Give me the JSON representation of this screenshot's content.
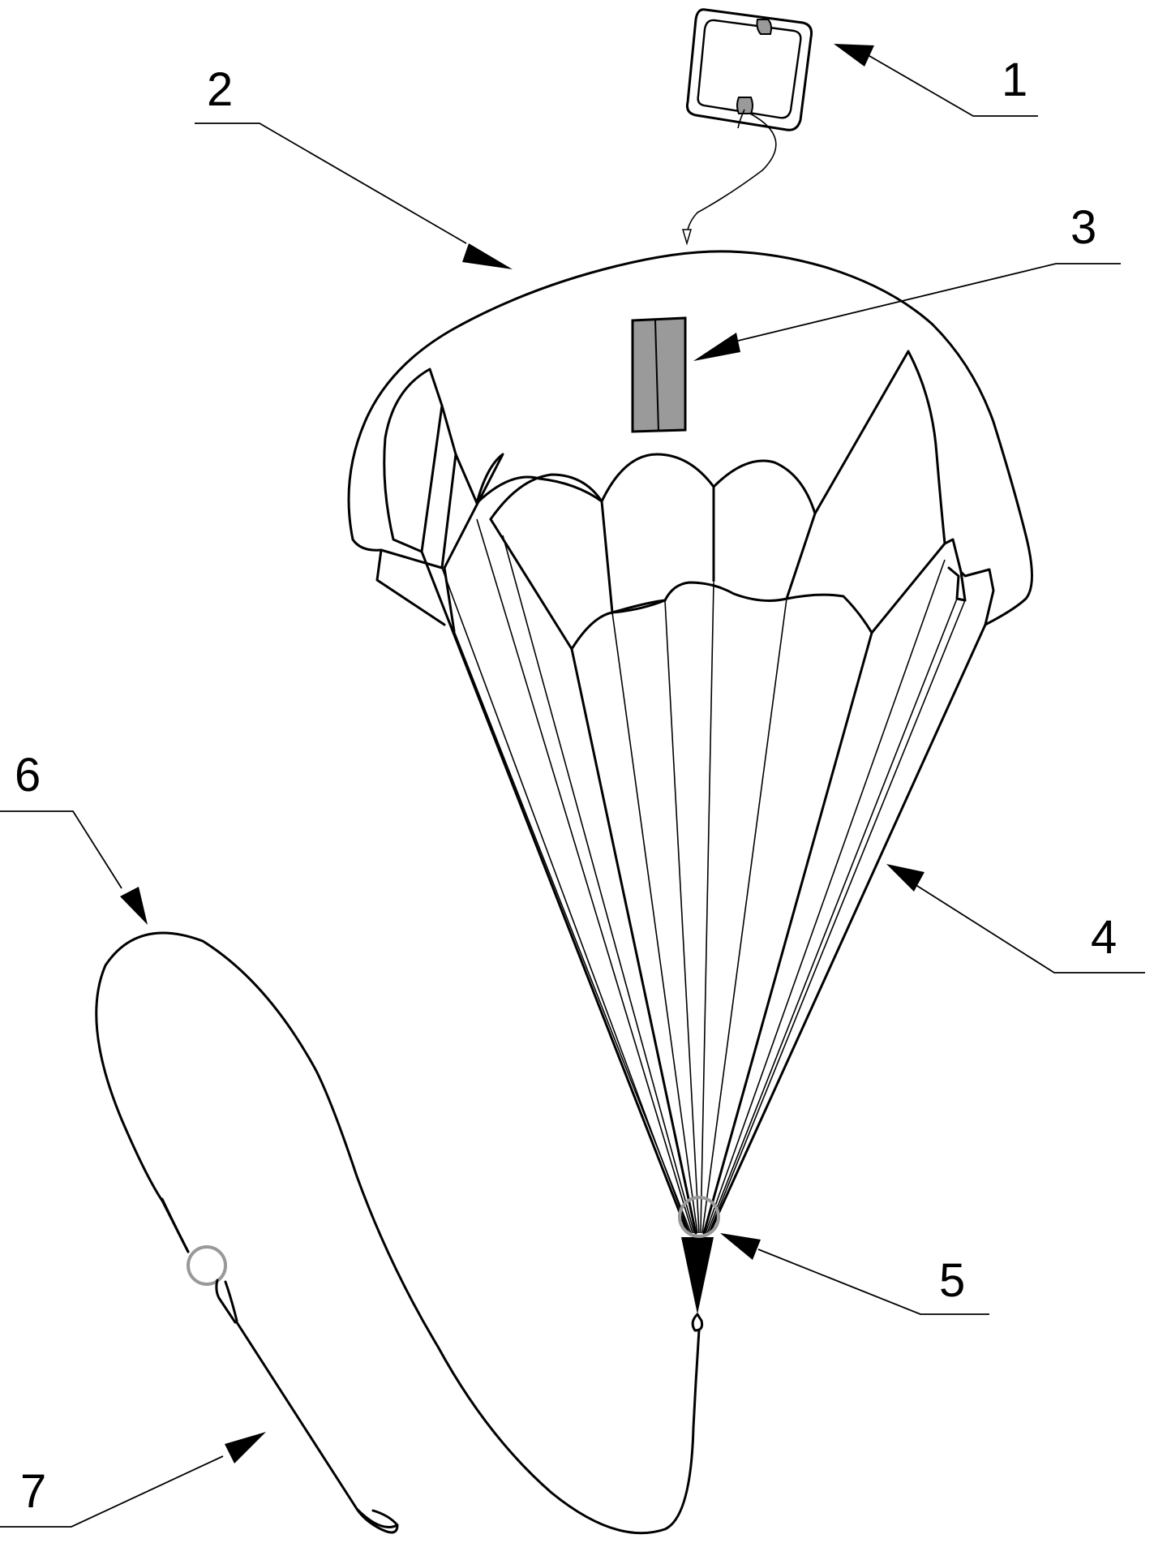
{
  "callouts": [
    {
      "id": "1",
      "text": "1"
    },
    {
      "id": "2",
      "text": "2"
    },
    {
      "id": "3",
      "text": "3"
    },
    {
      "id": "4",
      "text": "4"
    },
    {
      "id": "5",
      "text": "5"
    },
    {
      "id": "6",
      "text": "6"
    },
    {
      "id": "7",
      "text": "7"
    }
  ],
  "colors": {
    "ink": "#000000",
    "panel_gray": "#9a9a9a",
    "ring_gray": "#999999",
    "background": "#ffffff"
  }
}
